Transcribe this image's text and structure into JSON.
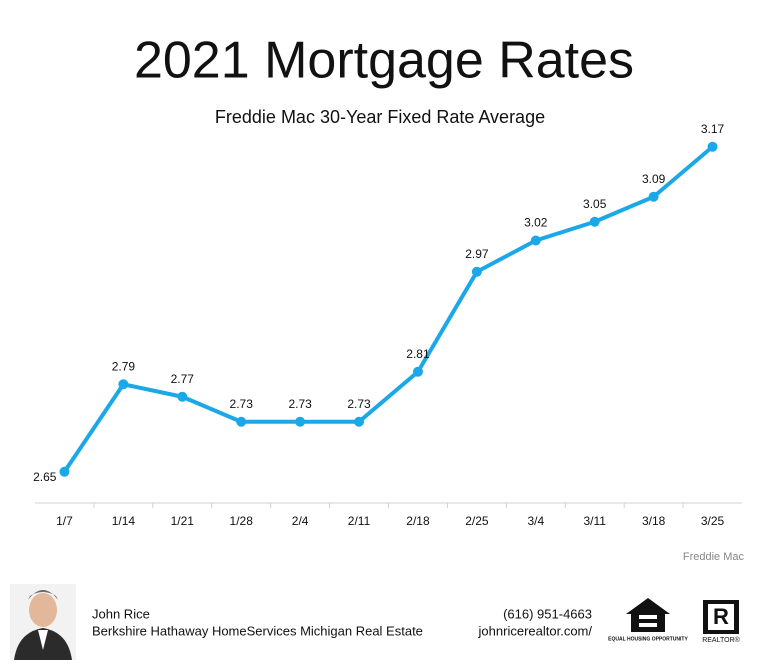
{
  "chart_data": {
    "type": "line",
    "title": "2021 Mortgage Rates",
    "subtitle": "Freddie Mac 30-Year Fixed Rate Average",
    "categories": [
      "1/7",
      "1/14",
      "1/21",
      "1/28",
      "2/4",
      "2/11",
      "2/18",
      "2/25",
      "3/4",
      "3/11",
      "3/18",
      "3/25"
    ],
    "values": [
      2.65,
      2.79,
      2.77,
      2.73,
      2.73,
      2.73,
      2.81,
      2.97,
      3.02,
      3.05,
      3.09,
      3.17
    ],
    "color": "#1ba8e8",
    "ylim": [
      2.6,
      3.2
    ],
    "source": "Freddie Mac"
  },
  "footer": {
    "name": "John Rice",
    "company": "Berkshire Hathaway HomeServices Michigan Real Estate",
    "phone": "(616) 951-4663",
    "website": "johnricerealtor.com/",
    "equal_housing": "EQUAL HOUSING OPPORTUNITY",
    "realtor": "REALTOR®"
  }
}
